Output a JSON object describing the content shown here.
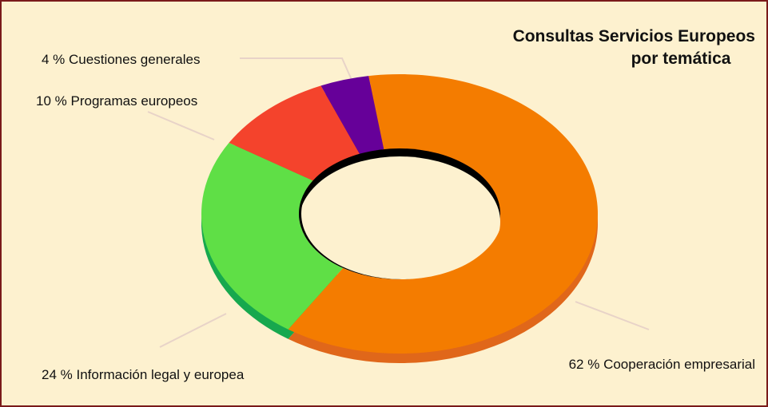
{
  "chart_data": {
    "type": "donut",
    "title": [
      "Consultas Servicios Europeos",
      "por temática"
    ],
    "categories": [
      "Cooperación empresarial",
      "Información legal y europea",
      "Programas europeos",
      "Cuestiones generales"
    ],
    "values": [
      62,
      24,
      10,
      4
    ],
    "value_labels": [
      "62 %",
      "24 %",
      "10 %",
      "4 %"
    ],
    "colors": [
      "#f47c00",
      "#5fdf46",
      "#f4432c",
      "#660099"
    ],
    "side_colors": [
      "#e0671a",
      "#17a84e",
      "#c42f1f",
      "#4a0070"
    ]
  }
}
